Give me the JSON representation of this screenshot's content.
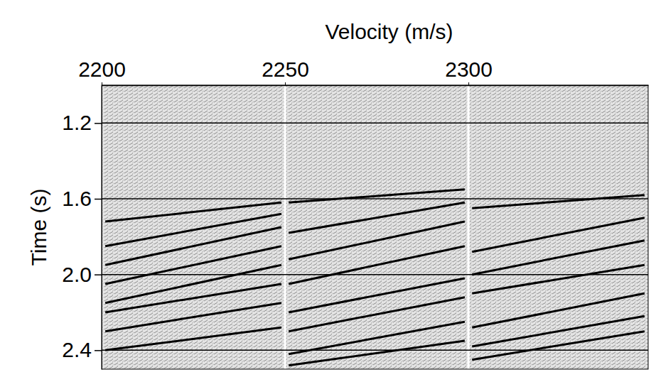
{
  "chart_data": {
    "type": "line",
    "xlabel": "Velocity (m/s)",
    "ylabel": "Time (s)",
    "xlim": [
      2200,
      2349
    ],
    "ylim": [
      1.0,
      2.5
    ],
    "xticks": [
      2200,
      2250,
      2300
    ],
    "yticks": [
      1.2,
      1.6,
      {
        "value": 2,
        "label": "2.0"
      },
      2.4
    ],
    "grid": true,
    "color": "#000000",
    "series": [
      {
        "x": [
          2201,
          2249
        ],
        "values": [
          1.72,
          1.62
        ]
      },
      {
        "x": [
          2201,
          2249
        ],
        "values": [
          1.85,
          1.68
        ]
      },
      {
        "x": [
          2201,
          2249
        ],
        "values": [
          1.95,
          1.75
        ]
      },
      {
        "x": [
          2201,
          2249
        ],
        "values": [
          2.05,
          1.85
        ]
      },
      {
        "x": [
          2201,
          2249
        ],
        "values": [
          2.15,
          1.95
        ]
      },
      {
        "x": [
          2201,
          2249
        ],
        "values": [
          2.2,
          2.05
        ]
      },
      {
        "x": [
          2201,
          2249
        ],
        "values": [
          2.3,
          2.15
        ]
      },
      {
        "x": [
          2201,
          2249
        ],
        "values": [
          2.4,
          2.28
        ]
      },
      {
        "x": [
          2251,
          2299
        ],
        "values": [
          1.62,
          1.55
        ]
      },
      {
        "x": [
          2251,
          2299
        ],
        "values": [
          1.78,
          1.62
        ]
      },
      {
        "x": [
          2251,
          2299
        ],
        "values": [
          1.92,
          1.72
        ]
      },
      {
        "x": [
          2251,
          2299
        ],
        "values": [
          2.05,
          1.85
        ]
      },
      {
        "x": [
          2251,
          2299
        ],
        "values": [
          2.2,
          2.02
        ]
      },
      {
        "x": [
          2251,
          2299
        ],
        "values": [
          2.3,
          2.12
        ]
      },
      {
        "x": [
          2251,
          2299
        ],
        "values": [
          2.42,
          2.25
        ]
      },
      {
        "x": [
          2251,
          2299
        ],
        "values": [
          2.48,
          2.35
        ]
      },
      {
        "x": [
          2301,
          2348
        ],
        "values": [
          1.65,
          1.58
        ]
      },
      {
        "x": [
          2301,
          2348
        ],
        "values": [
          1.88,
          1.7
        ]
      },
      {
        "x": [
          2301,
          2348
        ],
        "values": [
          2.0,
          1.82
        ]
      },
      {
        "x": [
          2301,
          2348
        ],
        "values": [
          2.1,
          1.95
        ]
      },
      {
        "x": [
          2301,
          2348
        ],
        "values": [
          2.28,
          2.1
        ]
      },
      {
        "x": [
          2301,
          2348
        ],
        "values": [
          2.38,
          2.22
        ]
      },
      {
        "x": [
          2301,
          2348
        ],
        "values": [
          2.45,
          2.3
        ]
      }
    ]
  }
}
